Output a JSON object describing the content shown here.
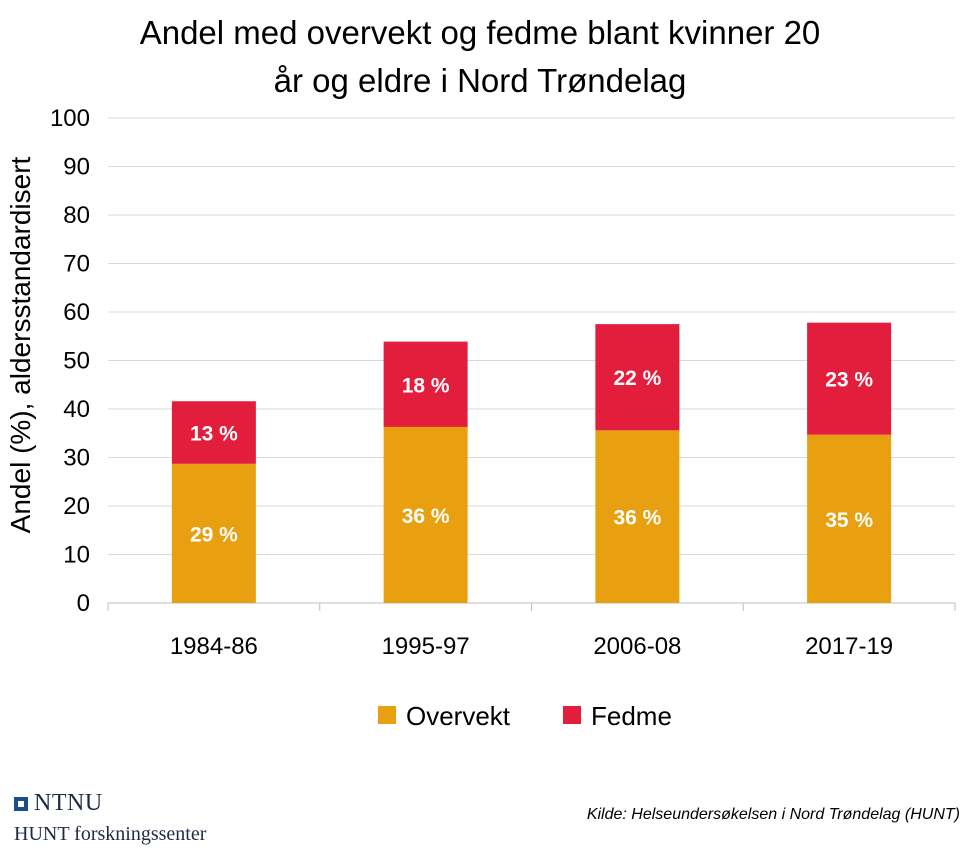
{
  "chart_data": {
    "type": "bar",
    "stacked": true,
    "title_lines": [
      "Andel med overvekt og fedme blant kvinner 20",
      "år og eldre i Nord Trøndelag"
    ],
    "ylabel": "Andel (%), aldersstandardisert",
    "xlabel": "",
    "ylim": [
      0,
      100
    ],
    "yticks": [
      "0",
      "10",
      "20",
      "30",
      "40",
      "50",
      "60",
      "70",
      "80",
      "90",
      "100"
    ],
    "categories": [
      "1984-86",
      "1995-97",
      "2006-08",
      "2017-19"
    ],
    "series": [
      {
        "name": "Overvekt",
        "color": "#E8A010",
        "values": [
          28.7,
          36.3,
          35.6,
          34.7
        ],
        "labels": [
          "29 %",
          "36 %",
          "36 %",
          "35 %"
        ]
      },
      {
        "name": "Fedme",
        "color": "#E31E3C",
        "values": [
          12.9,
          17.6,
          21.9,
          23.1
        ],
        "labels": [
          "13 %",
          "18 %",
          "22 %",
          "23 %"
        ]
      }
    ],
    "grid": true,
    "legend_position": "bottom"
  },
  "footer": {
    "logo_name": "NTNU",
    "logo_sub": "HUNT forskningssenter",
    "source": "Kilde: Helseundersøkelsen i Nord Trøndelag (HUNT)"
  }
}
